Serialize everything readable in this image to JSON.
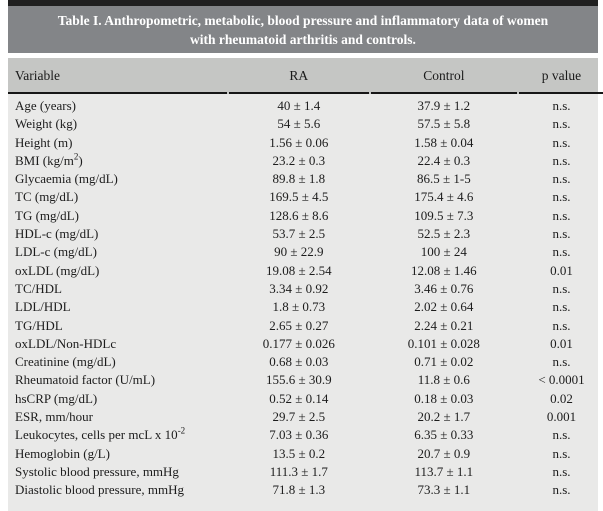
{
  "table": {
    "title_line1": "Table I. Anthropometric, metabolic, blood pressure and inflammatory data of women",
    "title_line2": "with rheumatoid arthritis and controls.",
    "columns": [
      "Variable",
      "RA",
      "Control",
      "p value"
    ],
    "rows": [
      {
        "variable": "Age (years)",
        "sup": "",
        "post": "",
        "ra": "40 ± 1.4",
        "control": "37.9 ± 1.2",
        "p": "n.s."
      },
      {
        "variable": "Weight (kg)",
        "sup": "",
        "post": "",
        "ra": "54 ± 5.6",
        "control": "57.5 ± 5.8",
        "p": "n.s."
      },
      {
        "variable": "Height (m)",
        "sup": "",
        "post": "",
        "ra": "1.56 ± 0.06",
        "control": "1.58 ± 0.04",
        "p": "n.s."
      },
      {
        "variable": "BMI (kg/m",
        "sup": "2",
        "post": ")",
        "ra": "23.2 ± 0.3",
        "control": "22.4 ± 0.3",
        "p": "n.s."
      },
      {
        "variable": "Glycaemia (mg/dL)",
        "sup": "",
        "post": "",
        "ra": "89.8 ± 1.8",
        "control": "86.5 ± 1-5",
        "p": "n.s."
      },
      {
        "variable": "TC (mg/dL)",
        "sup": "",
        "post": "",
        "ra": "169.5 ± 4.5",
        "control": "175.4 ± 4.6",
        "p": "n.s."
      },
      {
        "variable": "TG (mg/dL)",
        "sup": "",
        "post": "",
        "ra": "128.6 ± 8.6",
        "control": "109.5 ± 7.3",
        "p": "n.s."
      },
      {
        "variable": "HDL-c (mg/dL)",
        "sup": "",
        "post": "",
        "ra": "53.7 ± 2.5",
        "control": "52.5 ± 2.3",
        "p": "n.s."
      },
      {
        "variable": "LDL-c (mg/dL)",
        "sup": "",
        "post": "",
        "ra": "90 ± 22.9",
        "control": "100 ± 24",
        "p": "n.s."
      },
      {
        "variable": "oxLDL (mg/dL)",
        "sup": "",
        "post": "",
        "ra": "19.08 ± 2.54",
        "control": "12.08 ± 1.46",
        "p": "0.01"
      },
      {
        "variable": "TC/HDL",
        "sup": "",
        "post": "",
        "ra": "3.34 ± 0.92",
        "control": "3.46 ± 0.76",
        "p": "n.s."
      },
      {
        "variable": "LDL/HDL",
        "sup": "",
        "post": "",
        "ra": "1.8 ± 0.73",
        "control": "2.02 ± 0.64",
        "p": "n.s."
      },
      {
        "variable": "TG/HDL",
        "sup": "",
        "post": "",
        "ra": "2.65 ± 0.27",
        "control": "2.24 ± 0.21",
        "p": "n.s."
      },
      {
        "variable": "oxLDL/Non-HDLc",
        "sup": "",
        "post": "",
        "ra": "0.177 ± 0.026",
        "control": "0.101 ± 0.028",
        "p": "0.01"
      },
      {
        "variable": "Creatinine (mg/dL)",
        "sup": "",
        "post": "",
        "ra": "0.68 ± 0.03",
        "control": "0.71 ± 0.02",
        "p": "n.s."
      },
      {
        "variable": "Rheumatoid factor (U/mL)",
        "sup": "",
        "post": "",
        "ra": "155.6 ± 30.9",
        "control": "11.8 ± 0.6",
        "p": "< 0.0001"
      },
      {
        "variable": "hsCRP (mg/dL)",
        "sup": "",
        "post": "",
        "ra": "0.52 ± 0.14",
        "control": "0.18 ± 0.03",
        "p": "0.02"
      },
      {
        "variable": "ESR, mm/hour",
        "sup": "",
        "post": "",
        "ra": "29.7 ± 2.5",
        "control": "20.2 ± 1.7",
        "p": "0.001"
      },
      {
        "variable": "Leukocytes, cells per mcL x 10",
        "sup": "-2",
        "post": "",
        "ra": "7.03 ± 0.36",
        "control": "6.35 ± 0.33",
        "p": "n.s."
      },
      {
        "variable": "Hemoglobin (g/L)",
        "sup": "",
        "post": "",
        "ra": "13.5 ± 0.2",
        "control": "20.7 ± 0.9",
        "p": "n.s."
      },
      {
        "variable": "Systolic blood pressure, mmHg",
        "sup": "",
        "post": "",
        "ra": "111.3 ± 1.7",
        "control": "113.7 ± 1.1",
        "p": "n.s."
      },
      {
        "variable": "Diastolic blood pressure, mmHg",
        "sup": "",
        "post": "",
        "ra": "71.8 ± 1.3",
        "control": "73.3 ± 1.1",
        "p": "n.s."
      }
    ],
    "colors": {
      "title_band": "#838588",
      "header_band": "#c5c6c4",
      "body_band": "#e9e9e8",
      "top_rule": "#202020",
      "header_rule": "#161616",
      "title_text": "#ffffff",
      "body_text": "#1c1c1c"
    }
  }
}
